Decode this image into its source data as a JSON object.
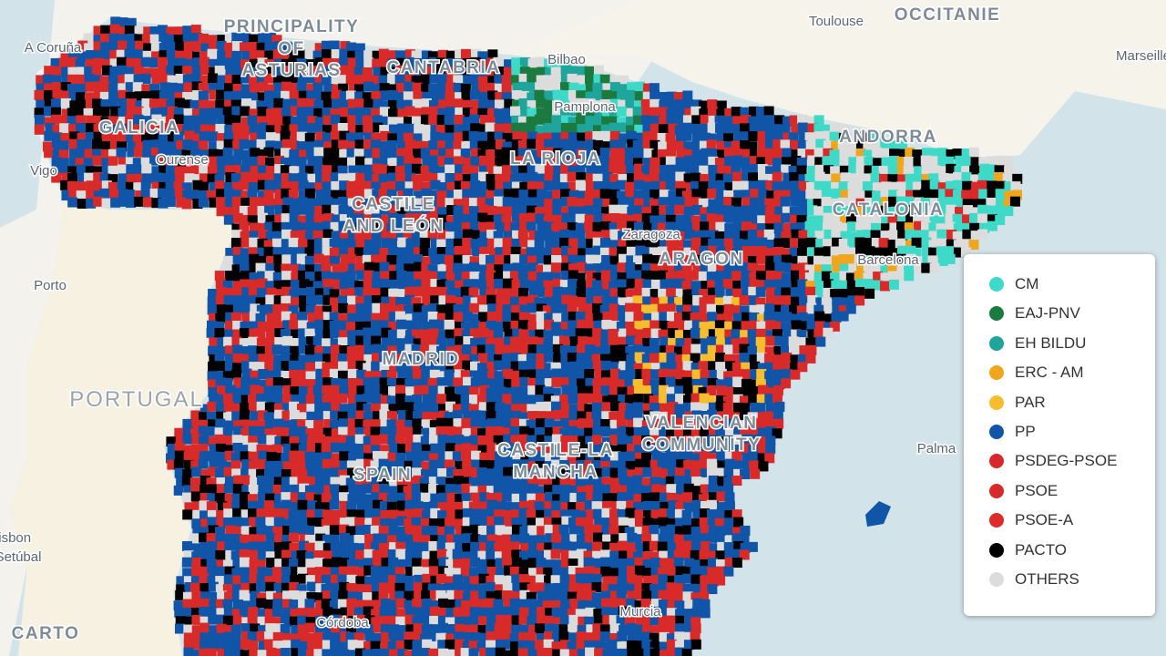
{
  "map": {
    "labels": [
      {
        "kind": "city",
        "lines": [
          "A Coruña"
        ]
      },
      {
        "kind": "region",
        "lines": [
          "PRINCIPALITY",
          "OF",
          "ASTURIAS"
        ]
      },
      {
        "kind": "region",
        "lines": [
          "CANTABRIA"
        ]
      },
      {
        "kind": "city",
        "lines": [
          "Bilbao"
        ]
      },
      {
        "kind": "city",
        "lines": [
          "Pamplona"
        ]
      },
      {
        "kind": "city",
        "lines": [
          "Toulouse"
        ]
      },
      {
        "kind": "region",
        "lines": [
          "OCCITANIE"
        ]
      },
      {
        "kind": "city",
        "lines": [
          "Marseille"
        ]
      },
      {
        "kind": "region",
        "lines": [
          "GALICIA"
        ]
      },
      {
        "kind": "city",
        "lines": [
          "Ourense"
        ]
      },
      {
        "kind": "city",
        "lines": [
          "Vigo"
        ]
      },
      {
        "kind": "region",
        "lines": [
          "LA RIOJA"
        ]
      },
      {
        "kind": "region",
        "lines": [
          "ANDORRA"
        ]
      },
      {
        "kind": "region",
        "lines": [
          "CASTILE",
          "AND LEÓN"
        ]
      },
      {
        "kind": "city",
        "lines": [
          "Zaragoza"
        ]
      },
      {
        "kind": "region",
        "lines": [
          "CATALONIA"
        ]
      },
      {
        "kind": "city",
        "lines": [
          "Barcelona"
        ]
      },
      {
        "kind": "region",
        "lines": [
          "ARAGON"
        ]
      },
      {
        "kind": "city",
        "lines": [
          "Porto"
        ]
      },
      {
        "kind": "region",
        "lines": [
          "MADRID"
        ]
      },
      {
        "kind": "country",
        "lines": [
          "PORTUGAL"
        ]
      },
      {
        "kind": "region",
        "lines": [
          "VALENCIAN",
          "COMMUNITY"
        ]
      },
      {
        "kind": "city",
        "lines": [
          "Palma"
        ]
      },
      {
        "kind": "region",
        "lines": [
          "CASTILE-LA",
          "MANCHA"
        ]
      },
      {
        "kind": "region",
        "lines": [
          "SPAIN"
        ]
      },
      {
        "kind": "city",
        "lines": [
          "Lisbon"
        ]
      },
      {
        "kind": "city",
        "lines": [
          "Setúbal"
        ]
      },
      {
        "kind": "city",
        "lines": [
          "Córdoba"
        ]
      },
      {
        "kind": "city",
        "lines": [
          "Murcia"
        ]
      },
      {
        "kind": "region",
        "lines": [
          "CARTO"
        ]
      }
    ],
    "legend": [
      {
        "name": "CM",
        "color": "#3fd9c8"
      },
      {
        "name": "EAJ-PNV",
        "color": "#1b7a40"
      },
      {
        "name": "EH BILDU",
        "color": "#1fa59b"
      },
      {
        "name": "ERC - AM",
        "color": "#f0a61c"
      },
      {
        "name": "PAR",
        "color": "#f8bd2e"
      },
      {
        "name": "PP",
        "color": "#1155a8"
      },
      {
        "name": "PSDEG-PSOE",
        "color": "#d7282c"
      },
      {
        "name": "PSOE",
        "color": "#d92a2a"
      },
      {
        "name": "PSOE-A",
        "color": "#dd2b2b"
      },
      {
        "name": "PACTO",
        "color": "#000000"
      },
      {
        "name": "OTHERS",
        "color": "#dcdcdc"
      }
    ]
  }
}
